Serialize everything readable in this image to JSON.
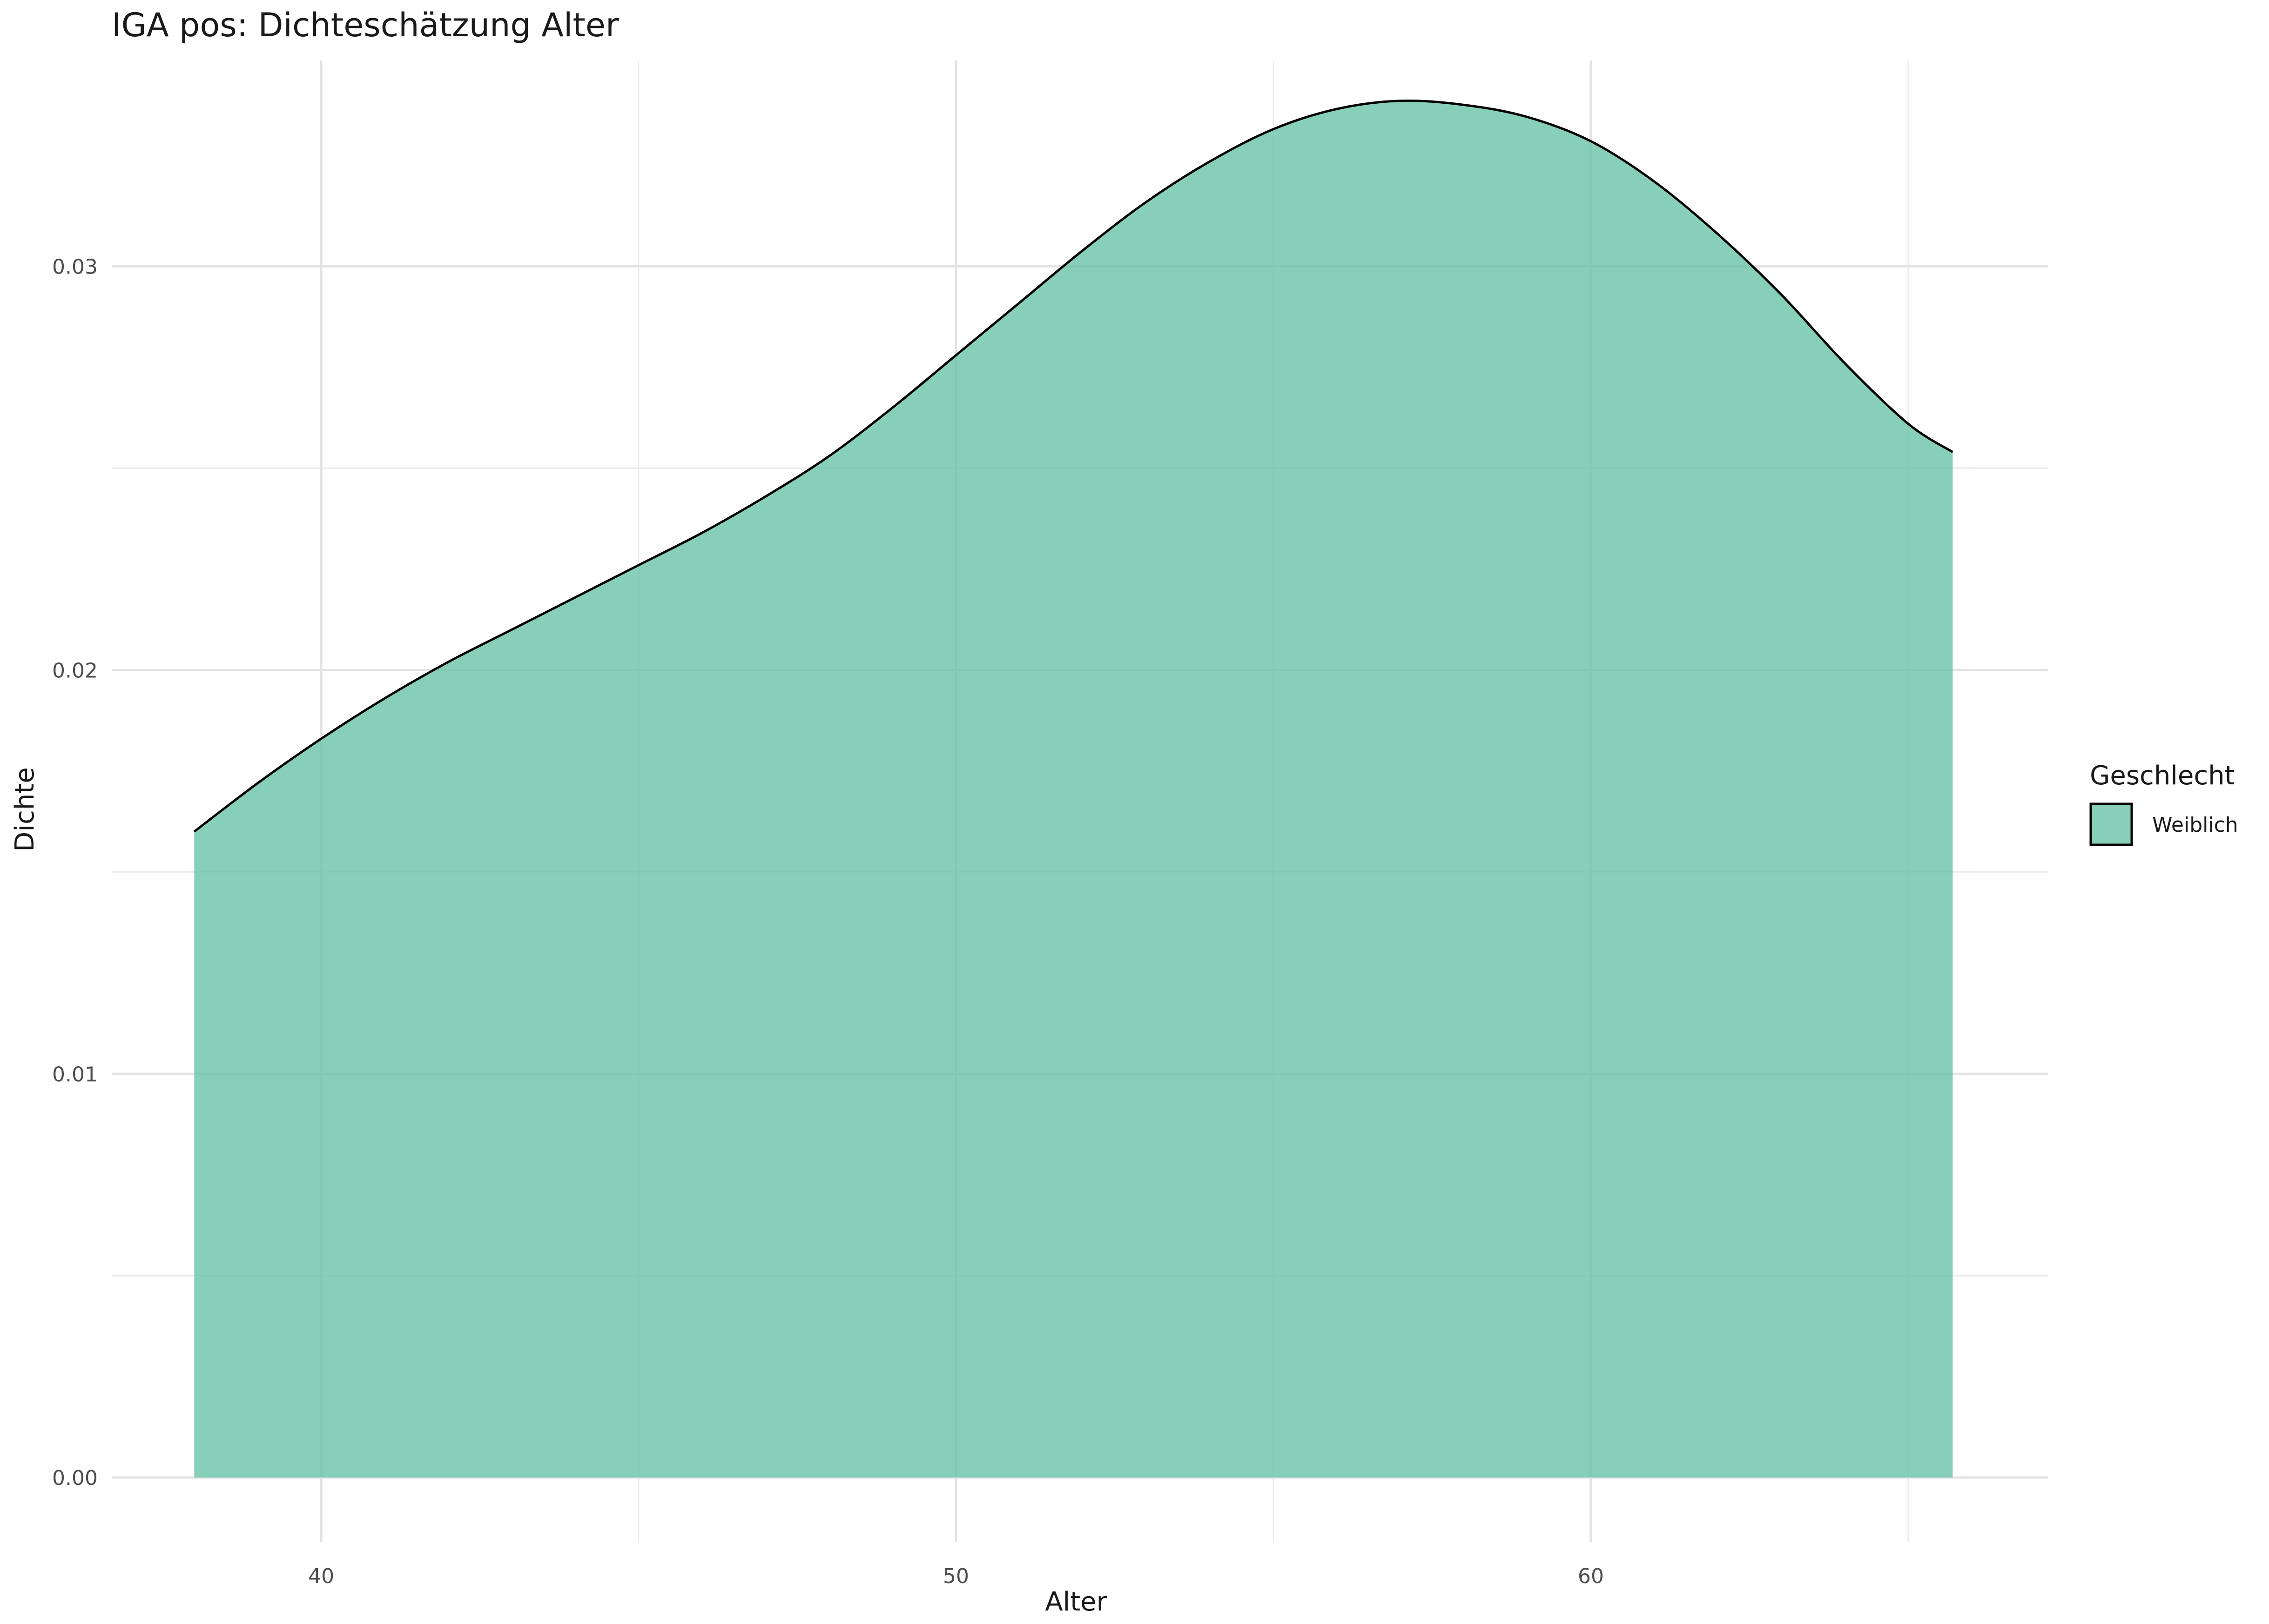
{
  "chart_data": {
    "type": "area",
    "title": "IGA pos: Dichteschätzung Alter",
    "xlabel": "Alter",
    "ylabel": "Dichte",
    "xlim": [
      36.7,
      67.2
    ],
    "ylim": [
      -0.0016,
      0.0351
    ],
    "x_ticks": [
      40,
      50,
      60
    ],
    "x_minor_ticks": [
      45,
      55,
      65
    ],
    "y_ticks": [
      0.0,
      0.01,
      0.02,
      0.03
    ],
    "y_tick_labels": [
      "0.00",
      "0.01",
      "0.02",
      "0.03"
    ],
    "y_minor_ticks": [
      0.005,
      0.015,
      0.025
    ],
    "grid": true,
    "legend": {
      "title": "Geschlecht",
      "position": "right"
    },
    "series": [
      {
        "name": "Weiblich",
        "color": "#66c2a5",
        "x": [
          38,
          39,
          40,
          41,
          42,
          43,
          44,
          45,
          46,
          47,
          48,
          49,
          50,
          51,
          52,
          53,
          54,
          55,
          56,
          57,
          58,
          59,
          60,
          61,
          62,
          63,
          64,
          65,
          65.7
        ],
        "y": [
          0.016,
          0.0172,
          0.0183,
          0.0193,
          0.0202,
          0.021,
          0.0218,
          0.0226,
          0.0234,
          0.0243,
          0.0253,
          0.0265,
          0.0278,
          0.0291,
          0.0304,
          0.0316,
          0.0326,
          0.0334,
          0.0339,
          0.0341,
          0.034,
          0.0337,
          0.0331,
          0.0321,
          0.0308,
          0.0293,
          0.0276,
          0.0261,
          0.0254
        ]
      }
    ]
  }
}
